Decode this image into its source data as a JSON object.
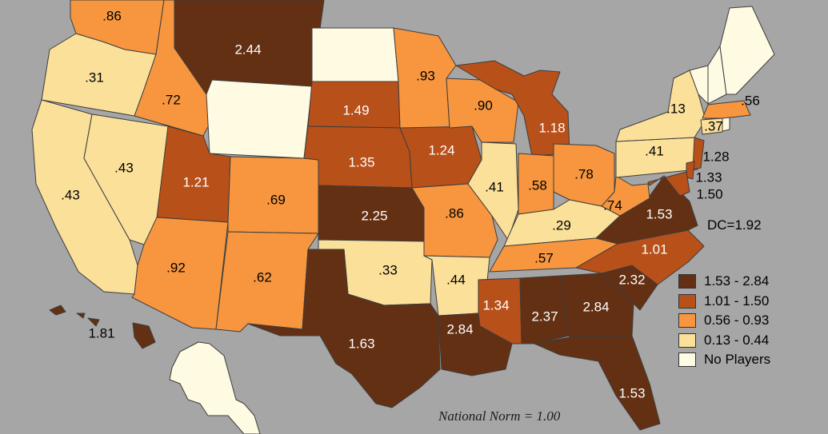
{
  "colors": {
    "background": "#a6a6a6",
    "ocean_border": "#3d3d3d",
    "bin_1": "#633013",
    "bin_2": "#b8501a",
    "bin_3": "#f7963f",
    "bin_4": "#fbe09a",
    "bin_none": "#fffbe2",
    "label_on_dark": "#ffffff",
    "label_on_light": "#000000"
  },
  "legend": [
    {
      "label": "1.53 - 2.84",
      "color": "#633013"
    },
    {
      "label": "1.01 - 1.50",
      "color": "#b8501a"
    },
    {
      "label": "0.56 - 0.93",
      "color": "#f7963f"
    },
    {
      "label": "0.13 - 0.44",
      "color": "#fbe09a"
    },
    {
      "label": "No Players",
      "color": "#fffbe2"
    }
  ],
  "dc_label": "DC=1.92",
  "norm_label": "National Norm = 1.00",
  "states": [
    {
      "id": "WA",
      "value": ".86",
      "bin": 3
    },
    {
      "id": "OR",
      "value": ".31",
      "bin": 4
    },
    {
      "id": "CA",
      "value": ".43",
      "bin": 4
    },
    {
      "id": "NV",
      "value": ".43",
      "bin": 4
    },
    {
      "id": "ID",
      "value": ".72",
      "bin": 3
    },
    {
      "id": "MT",
      "value": "2.44",
      "bin": 1
    },
    {
      "id": "WY",
      "value": "",
      "bin": 5
    },
    {
      "id": "UT",
      "value": "1.21",
      "bin": 2
    },
    {
      "id": "AZ",
      "value": ".92",
      "bin": 3
    },
    {
      "id": "CO",
      "value": ".69",
      "bin": 3
    },
    {
      "id": "NM",
      "value": ".62",
      "bin": 3
    },
    {
      "id": "ND",
      "value": "",
      "bin": 5
    },
    {
      "id": "SD",
      "value": "1.49",
      "bin": 2
    },
    {
      "id": "NE",
      "value": "1.35",
      "bin": 2
    },
    {
      "id": "KS",
      "value": "2.25",
      "bin": 1
    },
    {
      "id": "OK",
      "value": ".33",
      "bin": 4
    },
    {
      "id": "TX",
      "value": "1.63",
      "bin": 1
    },
    {
      "id": "MN",
      "value": ".93",
      "bin": 3
    },
    {
      "id": "IA",
      "value": "1.24",
      "bin": 2
    },
    {
      "id": "MO",
      "value": ".86",
      "bin": 3
    },
    {
      "id": "AR",
      "value": ".44",
      "bin": 4
    },
    {
      "id": "LA",
      "value": "2.84",
      "bin": 1
    },
    {
      "id": "WI",
      "value": ".90",
      "bin": 3
    },
    {
      "id": "IL",
      "value": ".41",
      "bin": 4
    },
    {
      "id": "MI",
      "value": "1.18",
      "bin": 2
    },
    {
      "id": "IN",
      "value": ".58",
      "bin": 3
    },
    {
      "id": "OH",
      "value": ".78",
      "bin": 3
    },
    {
      "id": "KY",
      "value": ".29",
      "bin": 4
    },
    {
      "id": "TN",
      "value": ".57",
      "bin": 3
    },
    {
      "id": "MS",
      "value": "1.34",
      "bin": 2
    },
    {
      "id": "AL",
      "value": "2.37",
      "bin": 1
    },
    {
      "id": "GA",
      "value": "2.84",
      "bin": 1
    },
    {
      "id": "FL",
      "value": "1.53",
      "bin": 1
    },
    {
      "id": "SC",
      "value": "2.32",
      "bin": 1
    },
    {
      "id": "NC",
      "value": "1.01",
      "bin": 2
    },
    {
      "id": "VA",
      "value": "1.53",
      "bin": 1
    },
    {
      "id": "WV",
      "value": ".74",
      "bin": 3
    },
    {
      "id": "PA",
      "value": ".41",
      "bin": 4
    },
    {
      "id": "NY",
      "value": ".13",
      "bin": 4
    },
    {
      "id": "NJ",
      "value": "1.28",
      "bin": 2
    },
    {
      "id": "DE",
      "value": "1.33",
      "bin": 2
    },
    {
      "id": "MD",
      "value": "1.50",
      "bin": 2
    },
    {
      "id": "CT",
      "value": ".37",
      "bin": 4
    },
    {
      "id": "MA",
      "value": ".56",
      "bin": 3
    },
    {
      "id": "RI",
      "value": "",
      "bin": 5
    },
    {
      "id": "VT",
      "value": "",
      "bin": 5
    },
    {
      "id": "NH",
      "value": "",
      "bin": 5
    },
    {
      "id": "ME",
      "value": "",
      "bin": 5
    },
    {
      "id": "HI",
      "value": "1.81",
      "bin": 1
    },
    {
      "id": "AK",
      "value": "",
      "bin": 5
    }
  ]
}
